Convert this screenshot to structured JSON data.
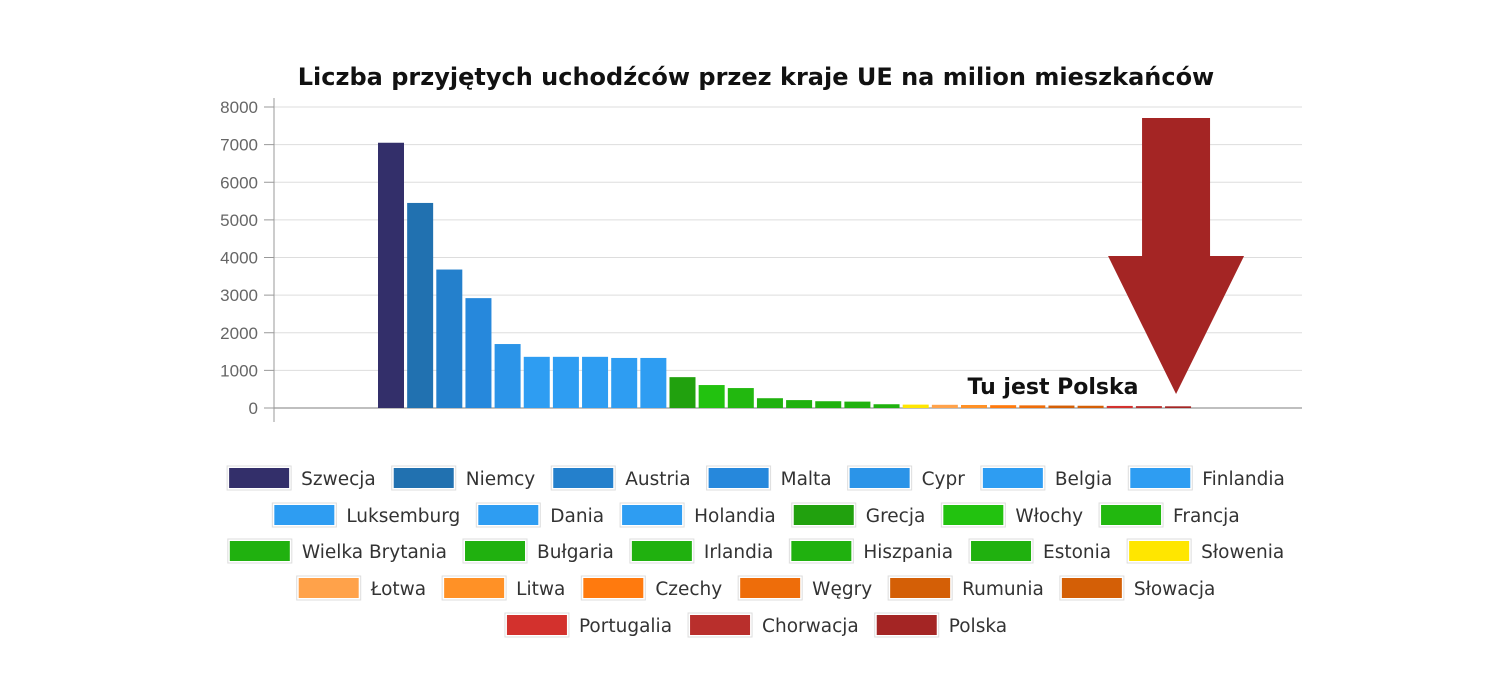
{
  "chart_data": {
    "type": "bar",
    "title": "Liczba przyjętych uchodźców przez kraje UE na milion mieszkańców",
    "ylim": [
      0,
      8000
    ],
    "yticks": [
      0,
      1000,
      2000,
      3000,
      4000,
      5000,
      6000,
      7000,
      8000
    ],
    "grid": true,
    "legend": "bottom",
    "series": [
      {
        "name": "Szwecja",
        "value": 7050,
        "color": "#332f6a"
      },
      {
        "name": "Niemcy",
        "value": 5450,
        "color": "#2171b0"
      },
      {
        "name": "Austria",
        "value": 3680,
        "color": "#2480cc"
      },
      {
        "name": "Malta",
        "value": 2920,
        "color": "#2688dc"
      },
      {
        "name": "Cypr",
        "value": 1700,
        "color": "#2b94e8"
      },
      {
        "name": "Belgia",
        "value": 1360,
        "color": "#2e9df2"
      },
      {
        "name": "Finlandia",
        "value": 1360,
        "color": "#2e9df2"
      },
      {
        "name": "Luksemburg",
        "value": 1360,
        "color": "#2e9df2"
      },
      {
        "name": "Dania",
        "value": 1330,
        "color": "#2e9df2"
      },
      {
        "name": "Holandia",
        "value": 1330,
        "color": "#2e9df2"
      },
      {
        "name": "Grecja",
        "value": 820,
        "color": "#21a10e"
      },
      {
        "name": "Włochy",
        "value": 610,
        "color": "#22c20f"
      },
      {
        "name": "Francja",
        "value": 530,
        "color": "#22b80f"
      },
      {
        "name": "Wielka Brytania",
        "value": 260,
        "color": "#20b10f"
      },
      {
        "name": "Bułgaria",
        "value": 210,
        "color": "#20b10f"
      },
      {
        "name": "Irlandia",
        "value": 180,
        "color": "#20b10f"
      },
      {
        "name": "Hiszpania",
        "value": 170,
        "color": "#20b10f"
      },
      {
        "name": "Estonia",
        "value": 100,
        "color": "#20b10f"
      },
      {
        "name": "Słowenia",
        "value": 90,
        "color": "#ffe600"
      },
      {
        "name": "Łotwa",
        "value": 85,
        "color": "#ffa24a"
      },
      {
        "name": "Litwa",
        "value": 80,
        "color": "#ff9126"
      },
      {
        "name": "Czechy",
        "value": 75,
        "color": "#ff7a0e"
      },
      {
        "name": "Węgry",
        "value": 70,
        "color": "#ee6d0a"
      },
      {
        "name": "Rumunia",
        "value": 65,
        "color": "#d45f06"
      },
      {
        "name": "Słowacja",
        "value": 60,
        "color": "#d45f06"
      },
      {
        "name": "Portugalia",
        "value": 55,
        "color": "#d3312d"
      },
      {
        "name": "Chorwacja",
        "value": 50,
        "color": "#b92f2c"
      },
      {
        "name": "Polska",
        "value": 45,
        "color": "#a42524"
      }
    ],
    "annotation": {
      "text": "Tu jest Polska",
      "target": "Polska",
      "arrow_color": "#a42524"
    }
  },
  "colors": {
    "axis": "#999999",
    "grid": "#dddddd",
    "legend_border": "#dddddd"
  }
}
